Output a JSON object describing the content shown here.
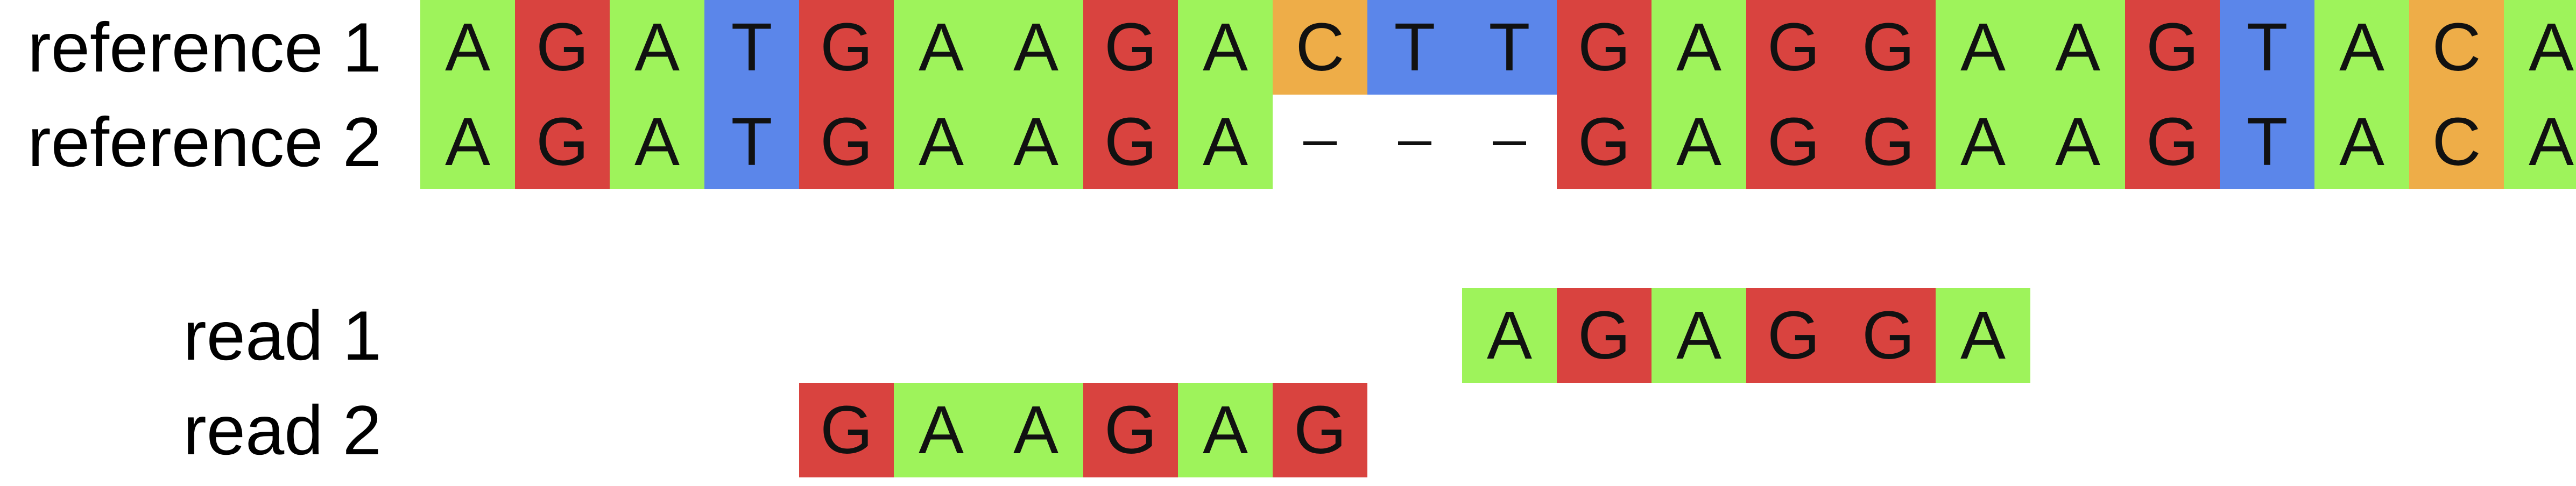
{
  "colors": {
    "A": "#9ef35b",
    "G": "#d9433f",
    "T": "#5b86ea",
    "C": "#eead48",
    "gap": "#ffffff"
  },
  "gap_symbol": "-",
  "sequences": [
    {
      "label": "reference 1",
      "offset": 0,
      "bases": [
        "A",
        "G",
        "A",
        "T",
        "G",
        "A",
        "A",
        "G",
        "A",
        "C",
        "T",
        "T",
        "G",
        "A",
        "G",
        "G",
        "A",
        "A",
        "G",
        "T",
        "A",
        "C",
        "A"
      ]
    },
    {
      "label": "reference 2",
      "offset": 0,
      "bases": [
        "A",
        "G",
        "A",
        "T",
        "G",
        "A",
        "A",
        "G",
        "A",
        "-",
        "-",
        "-",
        "G",
        "A",
        "G",
        "G",
        "A",
        "A",
        "G",
        "T",
        "A",
        "C",
        "A"
      ]
    },
    {
      "label": "read 1",
      "offset": 11,
      "bases": [
        "A",
        "G",
        "A",
        "G",
        "G",
        "A"
      ]
    },
    {
      "label": "read 2",
      "offset": 4,
      "bases": [
        "G",
        "A",
        "A",
        "G",
        "A",
        "G"
      ]
    }
  ]
}
